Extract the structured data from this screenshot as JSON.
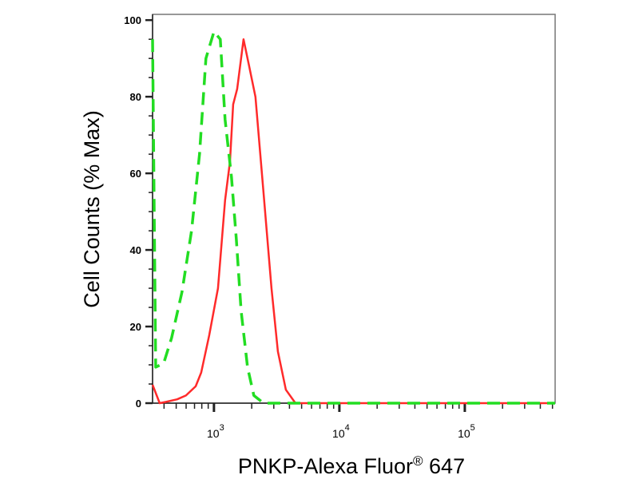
{
  "chart_data": {
    "type": "line",
    "title": "",
    "xlabel": "PNKP-Alexa Fluor",
    "xlabel_superscript": "®",
    "xlabel_suffix": "647",
    "ylabel": "Cell Counts (% Max)",
    "xscale": "log",
    "xlim": [
      324,
      525000
    ],
    "ylim": [
      0,
      101.5
    ],
    "x_tick_labels": [
      {
        "base": "10",
        "exp": "3",
        "value": 1000
      },
      {
        "base": "10",
        "exp": "4",
        "value": 10000
      },
      {
        "base": "10",
        "exp": "5",
        "value": 100000
      }
    ],
    "y_ticks": [
      0,
      20,
      40,
      60,
      80,
      100
    ],
    "grid": false,
    "legend": "none",
    "series": [
      {
        "color": "#ff2a2a",
        "style": "solid",
        "x": [
          324,
          369,
          408,
          509,
          598,
          715,
          791,
          916,
          1077,
          1227,
          1341,
          1422,
          1530,
          1721,
          1907,
          2143,
          2482,
          2875,
          3235,
          3743,
          4467,
          525000
        ],
        "y": [
          4.8,
          0,
          0.3,
          1,
          2,
          4.4,
          8,
          17.7,
          30,
          53,
          63,
          78,
          82,
          95,
          88,
          80,
          55,
          30,
          13.5,
          3.5,
          0,
          0
        ]
      },
      {
        "color": "#22dd22",
        "style": "dashed",
        "x": [
          324,
          343,
          397,
          459,
          556,
          663,
          767,
          863,
          1000,
          1124,
          1227,
          1380,
          1507,
          1648,
          1853,
          2080,
          2482,
          525000
        ],
        "y": [
          95,
          9.4,
          10.4,
          17,
          29,
          45,
          65,
          90,
          97,
          95,
          74,
          59,
          43,
          24,
          9.4,
          2,
          0,
          0
        ]
      }
    ]
  }
}
